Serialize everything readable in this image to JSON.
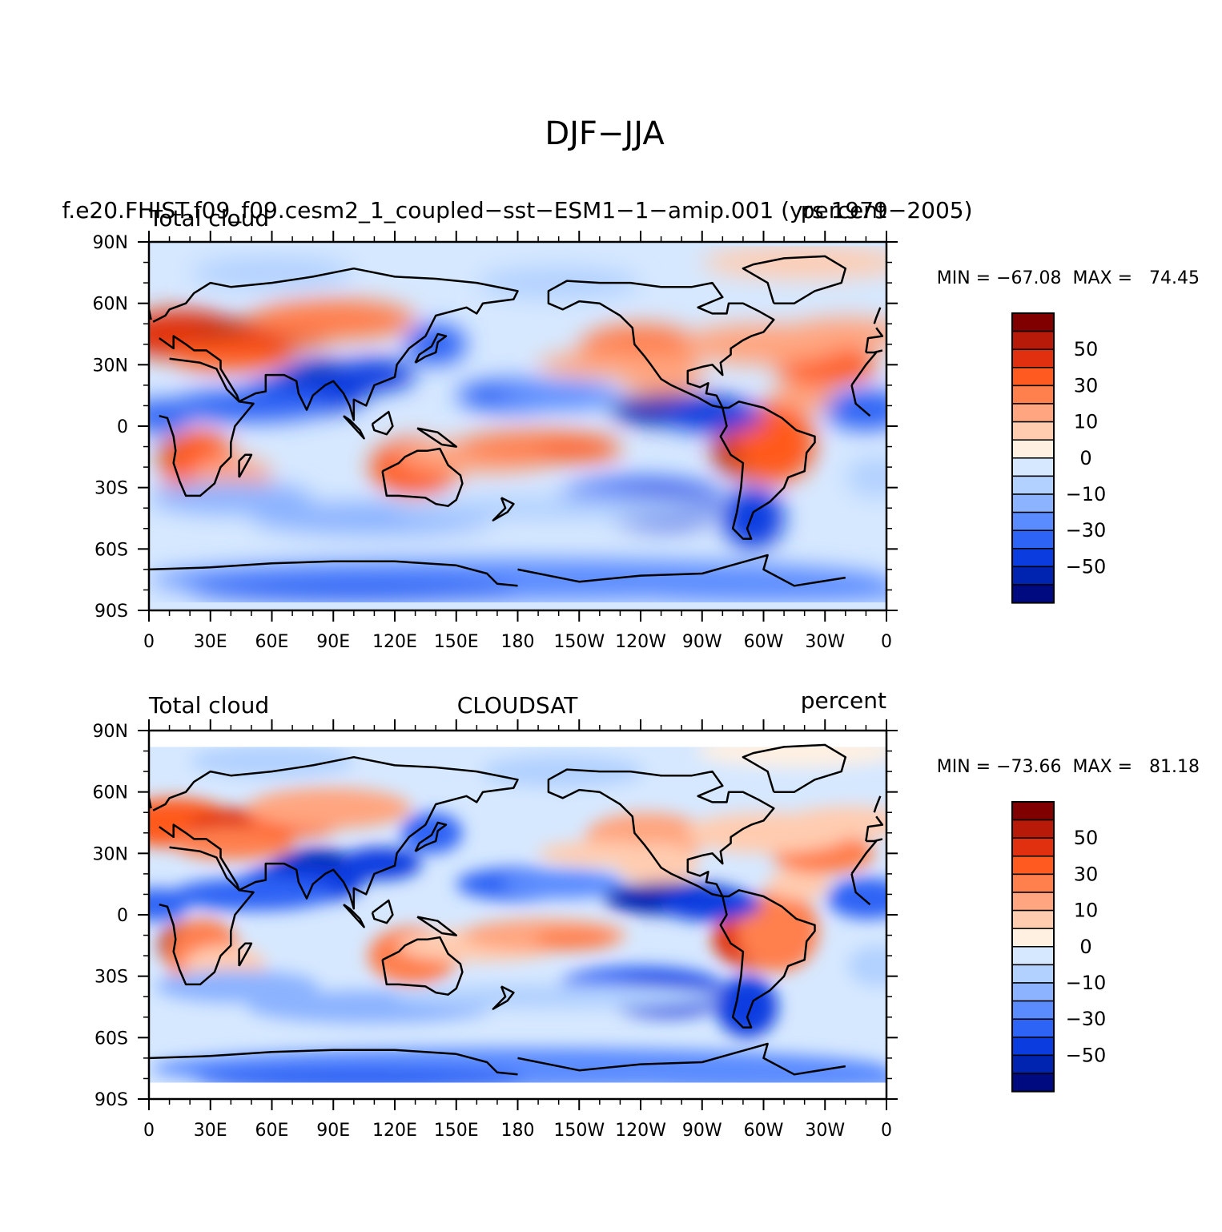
{
  "figure": {
    "title": "DJF−JJA"
  },
  "colors": {
    "levels": [
      "#800000",
      "#b81a0a",
      "#e0300f",
      "#ff5a1f",
      "#ff7f4d",
      "#ffa57f",
      "#ffccb0",
      "#fff0e2",
      "#d6e8ff",
      "#b2d1ff",
      "#8cb3ff",
      "#5b8cff",
      "#2e64f5",
      "#0a3ce0",
      "#0024b0",
      "#000a80"
    ],
    "coast": "#000000"
  },
  "colorbar_labels": [
    "50",
    "30",
    "10",
    "0",
    "−10",
    "−30",
    "−50"
  ],
  "panels": [
    {
      "left_title": "Total cloud",
      "center_title": "f.e20.FHIST.f09_f09.cesm2_1_coupled−sst−ESM1−1−amip.001 (yrs 1979−2005)",
      "right_title": "percent",
      "stats": "MIN = −67.08  MAX =   74.45"
    },
    {
      "left_title": "Total cloud",
      "center_title": "CLOUDSAT",
      "right_title": "percent",
      "stats": "MIN = −73.66  MAX =   81.18"
    }
  ],
  "axes": {
    "x_ticks": [
      "0",
      "30E",
      "60E",
      "90E",
      "120E",
      "150E",
      "180",
      "150W",
      "120W",
      "90W",
      "60W",
      "30W",
      "0"
    ],
    "y_ticks": [
      "90N",
      "60N",
      "30N",
      "0",
      "30S",
      "60S",
      "90S"
    ]
  },
  "chart_data": [
    {
      "type": "heatmap",
      "title": "DJF−JJA",
      "subtitle": "f.e20.FHIST.f09_f09.cesm2_1_coupled−sst−ESM1−1−amip.001 (yrs 1979−2005)",
      "variable": "Total cloud",
      "units": "percent",
      "xlim": [
        0,
        360
      ],
      "ylim": [
        -90,
        90
      ],
      "min": -67.08,
      "max": 74.45,
      "levels": [
        -60,
        -50,
        -40,
        -30,
        -20,
        -10,
        -5,
        0,
        5,
        10,
        20,
        30,
        40,
        50,
        60
      ]
    },
    {
      "type": "heatmap",
      "title": "DJF−JJA",
      "subtitle": "CLOUDSAT",
      "variable": "Total cloud",
      "units": "percent",
      "xlim": [
        0,
        360
      ],
      "ylim": [
        -90,
        90
      ],
      "min": -73.66,
      "max": 81.18,
      "levels": [
        -60,
        -50,
        -40,
        -30,
        -20,
        -10,
        -5,
        0,
        5,
        10,
        20,
        30,
        40,
        50,
        60
      ]
    }
  ]
}
